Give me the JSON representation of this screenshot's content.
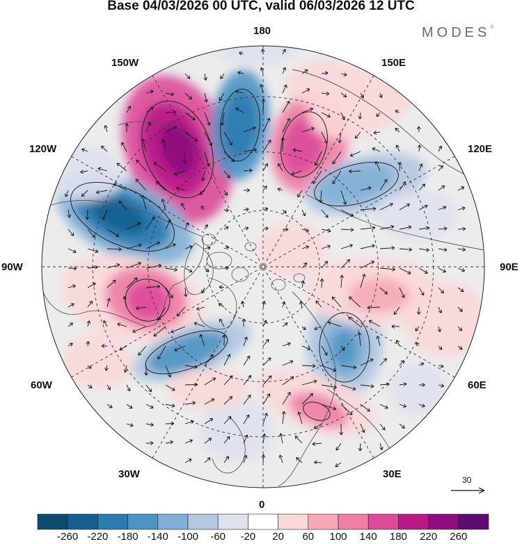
{
  "title": "Base 04/03/2026 00 UTC, valid 06/03/2026 12 UTC",
  "brand": "MODES",
  "brand_mark": "©",
  "longitude_labels": {
    "top": "180",
    "top_left": "150W",
    "top_right": "150E",
    "upper_left": "120W",
    "upper_right": "120E",
    "left": "90W",
    "right": "90E",
    "lower_left": "60W",
    "lower_right": "60E",
    "bottom_left": "30W",
    "bottom_right": "30E",
    "bottom": "0"
  },
  "reference_vector": {
    "value": "30"
  },
  "colorbar": {
    "labels": [
      "-260",
      "-220",
      "-180",
      "-140",
      "-100",
      "-60",
      "-20",
      "20",
      "60",
      "100",
      "140",
      "180",
      "220",
      "260"
    ],
    "colors": [
      "#0d4a6e",
      "#155f8e",
      "#2b7bb0",
      "#4f93c3",
      "#82afd6",
      "#b4c8e2",
      "#dfe1ef",
      "#ffffff",
      "#fbd8d8",
      "#f6aab7",
      "#ee7fa6",
      "#dc4a9a",
      "#b81b88",
      "#8f0c7e",
      "#5e0b6f"
    ]
  },
  "palette": {
    "land": "#ececec",
    "coast": "#555555",
    "grid": "#333333",
    "arrow": "#111111",
    "contour": "#222222"
  }
}
